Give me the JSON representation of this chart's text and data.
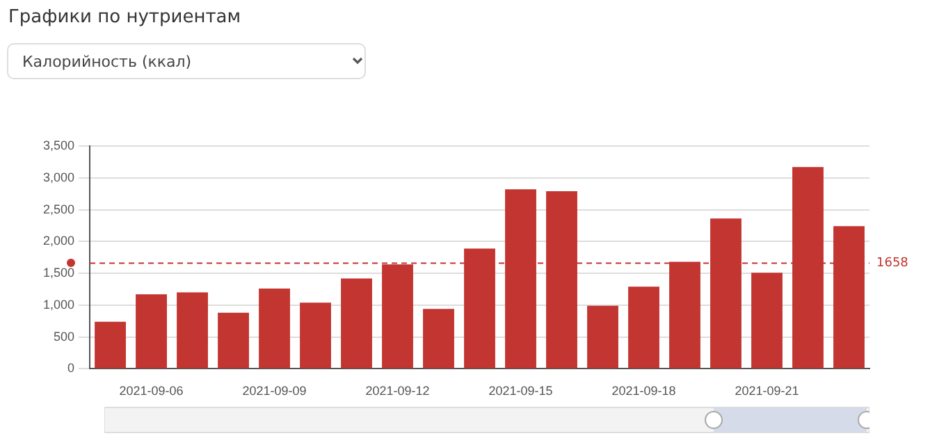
{
  "chart_data": {
    "type": "bar",
    "title": "Графики по нутриентам",
    "subtitle": "Калорийность (ккал)",
    "categories": [
      null,
      "2021-09-06",
      null,
      null,
      "2021-09-09",
      null,
      null,
      "2021-09-12",
      null,
      null,
      "2021-09-15",
      null,
      null,
      "2021-09-18",
      null,
      null,
      "2021-09-21",
      null,
      null
    ],
    "values": [
      740,
      1170,
      1200,
      880,
      1260,
      1040,
      1420,
      1640,
      940,
      1890,
      2820,
      2790,
      990,
      1290,
      1680,
      2360,
      1510,
      3170,
      2240
    ],
    "color": "#c23531",
    "ylim": [
      0,
      3500
    ],
    "yticks": [
      0,
      {
        "value": 500,
        "label": "500"
      },
      {
        "value": 1000,
        "label": "1,000"
      },
      {
        "value": 1500,
        "label": "1,500"
      },
      {
        "value": 2000,
        "label": "2,000"
      },
      {
        "value": 2500,
        "label": "2,500"
      },
      {
        "value": 3000,
        "label": "3,000"
      },
      {
        "value": 3500,
        "label": "3,500"
      }
    ],
    "ref_lines": [
      {
        "axis": "y",
        "value": 1658,
        "label": "1658",
        "color": "#c23531",
        "line_style": "dashed"
      }
    ],
    "grid": "y",
    "legend": false
  }
}
